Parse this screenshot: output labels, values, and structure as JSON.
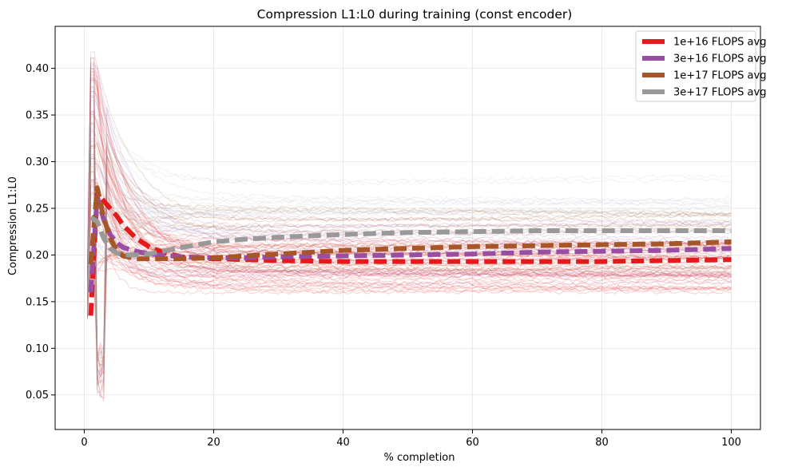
{
  "chart_data": {
    "type": "line",
    "title": "Compression L1:L0 during training (const encoder)",
    "xlabel": "% completion",
    "ylabel": "Compression L1:L0",
    "xlim": [
      -4.5,
      104.5
    ],
    "ylim": [
      0.013,
      0.445
    ],
    "x_ticks": [
      0,
      20,
      40,
      60,
      80,
      100
    ],
    "y_ticks": [
      0.05,
      0.1,
      0.15,
      0.2,
      0.25,
      0.3,
      0.35,
      0.4
    ],
    "x_tick_labels": [
      "0",
      "20",
      "40",
      "60",
      "80",
      "100"
    ],
    "y_tick_labels": [
      "0.05",
      "0.10",
      "0.15",
      "0.20",
      "0.25",
      "0.30",
      "0.35",
      "0.40"
    ],
    "grid": true,
    "legend_position": "top-right",
    "background_runs": "many faint individual runs per FLOPS budget, final values ~0.16–0.29",
    "series": [
      {
        "name": "1e+16 FLOPS avg",
        "color": "#e41a1c",
        "x": [
          1,
          2,
          3,
          4,
          5,
          6,
          8,
          10,
          12,
          15,
          20,
          25,
          30,
          40,
          50,
          60,
          70,
          80,
          90,
          100
        ],
        "values": [
          0.135,
          0.265,
          0.258,
          0.25,
          0.242,
          0.232,
          0.218,
          0.209,
          0.203,
          0.198,
          0.196,
          0.195,
          0.194,
          0.193,
          0.193,
          0.193,
          0.193,
          0.193,
          0.194,
          0.195
        ]
      },
      {
        "name": "3e+16 FLOPS avg",
        "color": "#984ea3",
        "x": [
          1,
          2,
          3,
          4,
          5,
          6,
          8,
          10,
          15,
          20,
          25,
          30,
          40,
          50,
          60,
          70,
          80,
          90,
          100
        ],
        "values": [
          0.16,
          0.262,
          0.238,
          0.222,
          0.213,
          0.208,
          0.204,
          0.201,
          0.198,
          0.197,
          0.197,
          0.198,
          0.199,
          0.2,
          0.201,
          0.203,
          0.204,
          0.205,
          0.207
        ]
      },
      {
        "name": "1e+17 FLOPS avg",
        "color": "#a65628",
        "x": [
          1,
          2,
          3,
          4,
          5,
          6,
          8,
          10,
          15,
          20,
          30,
          40,
          50,
          60,
          70,
          80,
          90,
          100
        ],
        "values": [
          0.19,
          0.272,
          0.24,
          0.218,
          0.205,
          0.199,
          0.196,
          0.196,
          0.196,
          0.197,
          0.201,
          0.205,
          0.207,
          0.209,
          0.21,
          0.211,
          0.212,
          0.214
        ]
      },
      {
        "name": "3e+17 FLOPS avg",
        "color": "#999999",
        "x": [
          1,
          2,
          3,
          4,
          5,
          6,
          8,
          10,
          15,
          20,
          25,
          30,
          40,
          50,
          60,
          70,
          80,
          90,
          100
        ],
        "values": [
          0.24,
          0.236,
          0.218,
          0.207,
          0.202,
          0.2,
          0.2,
          0.201,
          0.208,
          0.214,
          0.217,
          0.219,
          0.222,
          0.224,
          0.225,
          0.226,
          0.226,
          0.226,
          0.226
        ]
      }
    ]
  }
}
